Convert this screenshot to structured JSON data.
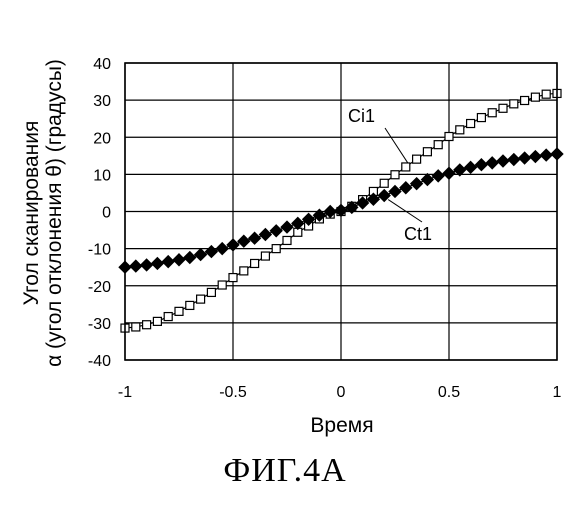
{
  "figure_caption": "ФИГ.4А",
  "chart_data": {
    "type": "line",
    "xlabel": "Время",
    "ylabel_line1": "Угол сканирования",
    "ylabel_line2": "α (угол отклонения θ) (градусы)",
    "xlim": [
      -1,
      1
    ],
    "ylim": [
      -40,
      40
    ],
    "xticks": [
      -1,
      -0.5,
      0,
      0.5,
      1
    ],
    "xtick_labels": [
      "-1",
      "-0.5",
      "0",
      "0.5",
      "1"
    ],
    "yticks": [
      -40,
      -30,
      -20,
      -10,
      0,
      10,
      20,
      30,
      40
    ],
    "ytick_labels": [
      "-40",
      "-30",
      "-20",
      "-10",
      "0",
      "10",
      "20",
      "30",
      "40"
    ],
    "grid": true,
    "series": [
      {
        "name": "Ci1",
        "marker": "open-square",
        "x": [
          -1,
          -0.95,
          -0.9,
          -0.85,
          -0.8,
          -0.75,
          -0.7,
          -0.65,
          -0.6,
          -0.55,
          -0.5,
          -0.45,
          -0.4,
          -0.35,
          -0.3,
          -0.25,
          -0.2,
          -0.15,
          -0.1,
          -0.05,
          0,
          0.05,
          0.1,
          0.15,
          0.2,
          0.25,
          0.3,
          0.35,
          0.4,
          0.45,
          0.5,
          0.55,
          0.6,
          0.65,
          0.7,
          0.75,
          0.8,
          0.85,
          0.9,
          0.95,
          1
        ],
        "y": [
          -31.4,
          -31.1,
          -30.5,
          -29.6,
          -28.3,
          -26.9,
          -25.3,
          -23.6,
          -21.8,
          -19.8,
          -17.8,
          -16.0,
          -14.0,
          -12.0,
          -10.0,
          -7.8,
          -5.6,
          -3.9,
          -2.0,
          -0.7,
          0.0,
          1.4,
          3.2,
          5.4,
          7.6,
          9.9,
          12.0,
          14.1,
          16.1,
          18.0,
          20.2,
          22.0,
          23.7,
          25.3,
          26.6,
          27.8,
          29.0,
          29.9,
          30.8,
          31.6,
          31.8
        ]
      },
      {
        "name": "Ct1",
        "marker": "filled-diamond",
        "x": [
          -1,
          -0.95,
          -0.9,
          -0.85,
          -0.8,
          -0.75,
          -0.7,
          -0.65,
          -0.6,
          -0.55,
          -0.5,
          -0.45,
          -0.4,
          -0.35,
          -0.3,
          -0.25,
          -0.2,
          -0.15,
          -0.1,
          -0.05,
          0,
          0.05,
          0.1,
          0.15,
          0.2,
          0.25,
          0.3,
          0.35,
          0.4,
          0.45,
          0.5,
          0.55,
          0.6,
          0.65,
          0.7,
          0.75,
          0.8,
          0.85,
          0.9,
          0.95,
          1
        ],
        "y": [
          -15.0,
          -14.7,
          -14.4,
          -14.0,
          -13.5,
          -13.0,
          -12.4,
          -11.6,
          -10.8,
          -10.0,
          -9.0,
          -8.0,
          -7.2,
          -6.2,
          -5.2,
          -4.2,
          -3.2,
          -2.1,
          -1.0,
          0.0,
          0.3,
          1.1,
          2.3,
          3.3,
          4.3,
          5.4,
          6.4,
          7.5,
          8.6,
          9.6,
          10.3,
          11.2,
          11.9,
          12.6,
          13.1,
          13.6,
          14.0,
          14.4,
          14.8,
          15.2,
          15.5
        ]
      }
    ],
    "annotations": [
      {
        "text": "Ci1",
        "series": "Ci1",
        "at_x": 0.3
      },
      {
        "text": "Ct1",
        "series": "Ct1",
        "at_x": 0.2
      }
    ]
  }
}
